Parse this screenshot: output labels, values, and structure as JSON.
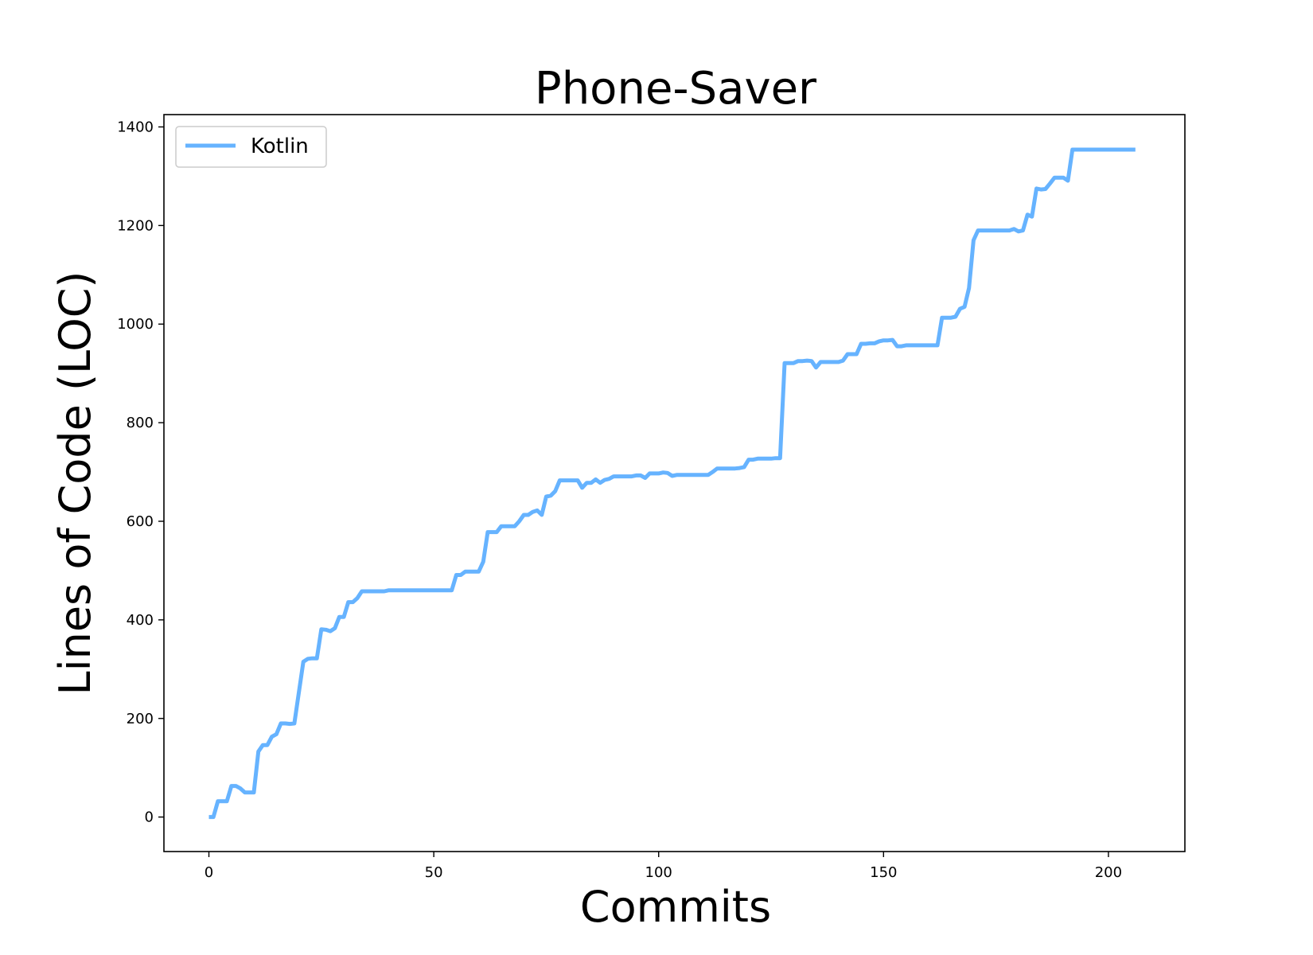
{
  "chart_data": {
    "type": "line",
    "title": "Phone-Saver",
    "xlabel": "Commits",
    "ylabel": "Lines of Code (LOC)",
    "xlim": [
      -10,
      217
    ],
    "ylim": [
      -70,
      1425
    ],
    "xticks": [
      0,
      50,
      100,
      150,
      200
    ],
    "yticks": [
      0,
      200,
      400,
      600,
      800,
      1000,
      1200,
      1400
    ],
    "xtick_labels": [
      "0",
      "50",
      "100",
      "150",
      "200"
    ],
    "ytick_labels": [
      "0",
      "200",
      "400",
      "600",
      "800",
      "1000",
      "1200",
      "1400"
    ],
    "grid": false,
    "legend_position": "upper-left",
    "series": [
      {
        "name": "Kotlin",
        "color": "#66b3ff",
        "points": [
          [
            0,
            0
          ],
          [
            1,
            0
          ],
          [
            2,
            32
          ],
          [
            3,
            32
          ],
          [
            4,
            32
          ],
          [
            5,
            63
          ],
          [
            6,
            63
          ],
          [
            7,
            58
          ],
          [
            8,
            50
          ],
          [
            9,
            50
          ],
          [
            10,
            50
          ],
          [
            11,
            133
          ],
          [
            12,
            146
          ],
          [
            13,
            146
          ],
          [
            14,
            163
          ],
          [
            15,
            168
          ],
          [
            16,
            190
          ],
          [
            17,
            190
          ],
          [
            18,
            189
          ],
          [
            19,
            190
          ],
          [
            20,
            253
          ],
          [
            21,
            315
          ],
          [
            22,
            321
          ],
          [
            23,
            322
          ],
          [
            24,
            322
          ],
          [
            25,
            381
          ],
          [
            26,
            380
          ],
          [
            27,
            377
          ],
          [
            28,
            383
          ],
          [
            29,
            406
          ],
          [
            30,
            406
          ],
          [
            31,
            436
          ],
          [
            32,
            436
          ],
          [
            33,
            444
          ],
          [
            34,
            458
          ],
          [
            35,
            458
          ],
          [
            36,
            458
          ],
          [
            37,
            458
          ],
          [
            38,
            458
          ],
          [
            39,
            458
          ],
          [
            40,
            460
          ],
          [
            45,
            460
          ],
          [
            50,
            460
          ],
          [
            54,
            460
          ],
          [
            55,
            491
          ],
          [
            56,
            491
          ],
          [
            57,
            498
          ],
          [
            58,
            498
          ],
          [
            59,
            498
          ],
          [
            60,
            498
          ],
          [
            61,
            518
          ],
          [
            62,
            578
          ],
          [
            63,
            578
          ],
          [
            64,
            578
          ],
          [
            65,
            590
          ],
          [
            66,
            590
          ],
          [
            67,
            590
          ],
          [
            68,
            590
          ],
          [
            69,
            600
          ],
          [
            70,
            613
          ],
          [
            71,
            613
          ],
          [
            72,
            619
          ],
          [
            73,
            622
          ],
          [
            74,
            613
          ],
          [
            75,
            650
          ],
          [
            76,
            652
          ],
          [
            77,
            661
          ],
          [
            78,
            683
          ],
          [
            79,
            683
          ],
          [
            80,
            683
          ],
          [
            81,
            683
          ],
          [
            82,
            683
          ],
          [
            83,
            668
          ],
          [
            84,
            678
          ],
          [
            85,
            678
          ],
          [
            86,
            685
          ],
          [
            87,
            678
          ],
          [
            88,
            684
          ],
          [
            89,
            686
          ],
          [
            90,
            691
          ],
          [
            91,
            691
          ],
          [
            92,
            691
          ],
          [
            93,
            691
          ],
          [
            94,
            691
          ],
          [
            95,
            693
          ],
          [
            96,
            693
          ],
          [
            97,
            688
          ],
          [
            98,
            697
          ],
          [
            99,
            697
          ],
          [
            100,
            697
          ],
          [
            101,
            699
          ],
          [
            102,
            698
          ],
          [
            103,
            692
          ],
          [
            104,
            694
          ],
          [
            105,
            694
          ],
          [
            106,
            694
          ],
          [
            107,
            694
          ],
          [
            108,
            694
          ],
          [
            109,
            694
          ],
          [
            110,
            694
          ],
          [
            111,
            694
          ],
          [
            112,
            700
          ],
          [
            113,
            707
          ],
          [
            114,
            707
          ],
          [
            115,
            707
          ],
          [
            116,
            707
          ],
          [
            117,
            707
          ],
          [
            118,
            708
          ],
          [
            119,
            710
          ],
          [
            120,
            725
          ],
          [
            121,
            725
          ],
          [
            122,
            727
          ],
          [
            123,
            727
          ],
          [
            124,
            727
          ],
          [
            125,
            727
          ],
          [
            126,
            728
          ],
          [
            127,
            728
          ],
          [
            128,
            921
          ],
          [
            129,
            921
          ],
          [
            130,
            921
          ],
          [
            131,
            925
          ],
          [
            132,
            925
          ],
          [
            133,
            926
          ],
          [
            134,
            925
          ],
          [
            135,
            912
          ],
          [
            136,
            923
          ],
          [
            137,
            923
          ],
          [
            138,
            923
          ],
          [
            139,
            923
          ],
          [
            140,
            923
          ],
          [
            141,
            926
          ],
          [
            142,
            939
          ],
          [
            143,
            939
          ],
          [
            144,
            939
          ],
          [
            145,
            960
          ],
          [
            146,
            960
          ],
          [
            147,
            961
          ],
          [
            148,
            961
          ],
          [
            149,
            965
          ],
          [
            150,
            967
          ],
          [
            151,
            967
          ],
          [
            152,
            968
          ],
          [
            153,
            955
          ],
          [
            154,
            955
          ],
          [
            155,
            957
          ],
          [
            156,
            957
          ],
          [
            157,
            957
          ],
          [
            158,
            957
          ],
          [
            159,
            957
          ],
          [
            160,
            957
          ],
          [
            161,
            957
          ],
          [
            162,
            957
          ],
          [
            163,
            1013
          ],
          [
            164,
            1013
          ],
          [
            165,
            1013
          ],
          [
            166,
            1015
          ],
          [
            167,
            1031
          ],
          [
            168,
            1035
          ],
          [
            169,
            1073
          ],
          [
            170,
            1170
          ],
          [
            171,
            1190
          ],
          [
            172,
            1190
          ],
          [
            173,
            1190
          ],
          [
            174,
            1190
          ],
          [
            175,
            1190
          ],
          [
            176,
            1190
          ],
          [
            177,
            1190
          ],
          [
            178,
            1190
          ],
          [
            179,
            1193
          ],
          [
            180,
            1188
          ],
          [
            181,
            1190
          ],
          [
            182,
            1222
          ],
          [
            183,
            1218
          ],
          [
            184,
            1275
          ],
          [
            185,
            1273
          ],
          [
            186,
            1274
          ],
          [
            187,
            1285
          ],
          [
            188,
            1297
          ],
          [
            189,
            1297
          ],
          [
            190,
            1297
          ],
          [
            191,
            1291
          ],
          [
            192,
            1354
          ],
          [
            193,
            1354
          ],
          [
            195,
            1354
          ],
          [
            200,
            1354
          ],
          [
            206,
            1354
          ]
        ]
      }
    ]
  }
}
